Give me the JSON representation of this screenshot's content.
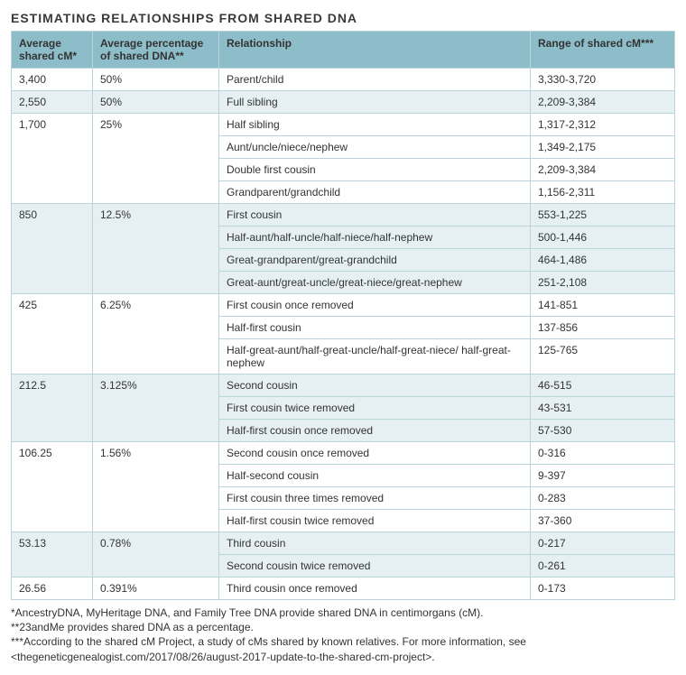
{
  "title": "ESTIMATING RELATIONSHIPS FROM SHARED DNA",
  "colors": {
    "header_bg": "#8cbdc9",
    "tint_bg": "#e6f0f3",
    "plain_bg": "#ffffff",
    "border": "#b9d4db",
    "text": "#333333"
  },
  "columns": {
    "c1": "Average shared cM*",
    "c2": "Average percentage of shared DNA**",
    "c3": "Relationship",
    "c4": "Range of shared cM***"
  },
  "groups": [
    {
      "tint": false,
      "avg_cm": "3,400",
      "avg_pct": "50%",
      "rows": [
        {
          "rel": "Parent/child",
          "range": "3,330-3,720"
        }
      ]
    },
    {
      "tint": true,
      "avg_cm": "2,550",
      "avg_pct": "50%",
      "rows": [
        {
          "rel": "Full sibling",
          "range": "2,209-3,384"
        }
      ]
    },
    {
      "tint": false,
      "avg_cm": "1,700",
      "avg_pct": "25%",
      "rows": [
        {
          "rel": "Half sibling",
          "range": "1,317-2,312"
        },
        {
          "rel": "Aunt/uncle/niece/nephew",
          "range": "1,349-2,175"
        },
        {
          "rel": "Double first cousin",
          "range": "2,209-3,384"
        },
        {
          "rel": "Grandparent/grandchild",
          "range": "1,156-2,311"
        }
      ]
    },
    {
      "tint": true,
      "avg_cm": "850",
      "avg_pct": "12.5%",
      "rows": [
        {
          "rel": "First cousin",
          "range": "553-1,225"
        },
        {
          "rel": "Half-aunt/half-uncle/half-niece/half-nephew",
          "range": "500-1,446"
        },
        {
          "rel": "Great-grandparent/great-grandchild",
          "range": "464-1,486"
        },
        {
          "rel": "Great-aunt/great-uncle/great-niece/great-nephew",
          "range": "251-2,108"
        }
      ]
    },
    {
      "tint": false,
      "avg_cm": "425",
      "avg_pct": "6.25%",
      "rows": [
        {
          "rel": "First cousin once removed",
          "range": "141-851"
        },
        {
          "rel": "Half-first cousin",
          "range": "137-856"
        },
        {
          "rel": "Half-great-aunt/half-great-uncle/half-great-niece/ half-great-nephew",
          "range": "125-765"
        }
      ]
    },
    {
      "tint": true,
      "avg_cm": "212.5",
      "avg_pct": "3.125%",
      "rows": [
        {
          "rel": "Second cousin",
          "range": "46-515"
        },
        {
          "rel": "First cousin twice removed",
          "range": "43-531"
        },
        {
          "rel": "Half-first cousin once removed",
          "range": "57-530"
        }
      ]
    },
    {
      "tint": false,
      "avg_cm": "106.25",
      "avg_pct": "1.56%",
      "rows": [
        {
          "rel": "Second cousin once removed",
          "range": "0-316"
        },
        {
          "rel": "Half-second cousin",
          "range": "9-397"
        },
        {
          "rel": "First cousin three times removed",
          "range": "0-283"
        },
        {
          "rel": "Half-first cousin twice removed",
          "range": "37-360"
        }
      ]
    },
    {
      "tint": true,
      "avg_cm": "53.13",
      "avg_pct": "0.78%",
      "rows": [
        {
          "rel": "Third cousin",
          "range": "0-217"
        },
        {
          "rel": "Second cousin twice removed",
          "range": "0-261"
        }
      ]
    },
    {
      "tint": false,
      "avg_cm": "26.56",
      "avg_pct": "0.391%",
      "rows": [
        {
          "rel": "Third cousin once removed",
          "range": "0-173"
        }
      ]
    }
  ],
  "footnotes": {
    "f1": "*AncestryDNA, MyHeritage DNA, and Family Tree DNA provide shared DNA in centimorgans (cM).",
    "f2": "**23andMe provides shared DNA as a percentage.",
    "f3a": "***According to the shared cM Project, a study of cMs shared by known relatives. For more information, see",
    "f3b": "<thegeneticgenealogist.com/2017/08/26/august-2017-update-to-the-shared-cm-project>."
  }
}
